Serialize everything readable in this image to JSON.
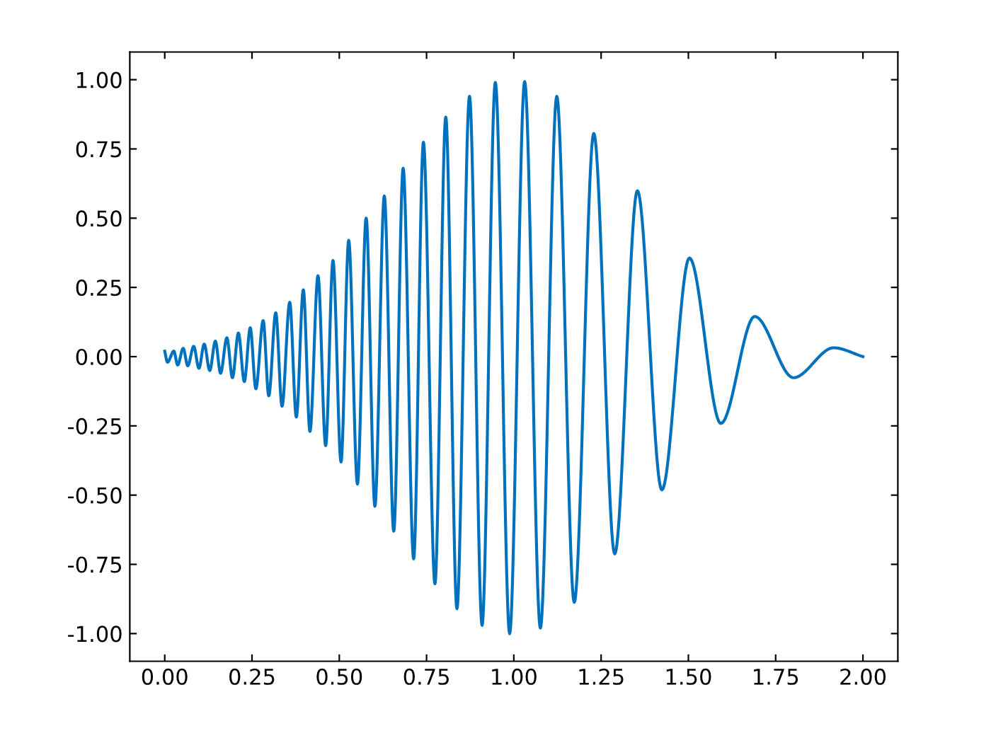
{
  "chart_data": {
    "type": "line",
    "series": [
      {
        "color": "#0072bd",
        "x": [
          0.0,
          0.008,
          0.026,
          0.037,
          0.053,
          0.066,
          0.083,
          0.098,
          0.113,
          0.129,
          0.145,
          0.16,
          0.178,
          0.194,
          0.211,
          0.228,
          0.245,
          0.261,
          0.282,
          0.298,
          0.318,
          0.336,
          0.358,
          0.377,
          0.397,
          0.416,
          0.439,
          0.461,
          0.482,
          0.505,
          0.527,
          0.552,
          0.577,
          0.602,
          0.629,
          0.656,
          0.683,
          0.713,
          0.741,
          0.774,
          0.805,
          0.837,
          0.873,
          0.909,
          0.947,
          0.988,
          1.031,
          1.076,
          1.123,
          1.173,
          1.229,
          1.289,
          1.354,
          1.424,
          1.503,
          1.593,
          1.69,
          1.801,
          1.916,
          2.0
        ],
        "values": [
          0.02,
          -0.02,
          0.02,
          -0.03,
          0.03,
          -0.033,
          0.037,
          -0.042,
          0.045,
          -0.05,
          0.056,
          -0.06,
          0.068,
          -0.076,
          0.085,
          -0.09,
          0.104,
          -0.116,
          0.13,
          -0.141,
          0.158,
          -0.179,
          0.196,
          -0.218,
          0.241,
          -0.27,
          0.292,
          -0.321,
          0.347,
          -0.38,
          0.42,
          -0.46,
          0.5,
          -0.54,
          0.58,
          -0.63,
          0.68,
          -0.73,
          0.774,
          -0.82,
          0.865,
          -0.91,
          0.94,
          -0.97,
          0.99,
          -1.0,
          0.993,
          -0.98,
          0.94,
          -0.887,
          0.806,
          -0.712,
          0.599,
          -0.481,
          0.356,
          -0.241,
          0.145,
          -0.076,
          0.032,
          0.0
        ]
      }
    ],
    "xlim": [
      -0.1,
      2.1
    ],
    "ylim": [
      -1.1,
      1.1
    ],
    "xticks": [
      {
        "value": 0,
        "label": "0.00"
      },
      {
        "value": 0.25,
        "label": "0.25"
      },
      {
        "value": 0.5,
        "label": "0.50"
      },
      {
        "value": 0.75,
        "label": "0.75"
      },
      {
        "value": 1,
        "label": "1.00"
      },
      {
        "value": 1.25,
        "label": "1.25"
      },
      {
        "value": 1.5,
        "label": "1.50"
      },
      {
        "value": 1.75,
        "label": "1.75"
      },
      {
        "value": 2,
        "label": "2.00"
      }
    ],
    "yticks": [
      {
        "value": -1,
        "label": "-1.00"
      },
      {
        "value": -0.75,
        "label": "-0.75"
      },
      {
        "value": -0.5,
        "label": "-0.50"
      },
      {
        "value": -0.25,
        "label": "-0.25"
      },
      {
        "value": 0,
        "label": "0.00"
      },
      {
        "value": 0.25,
        "label": "0.25"
      },
      {
        "value": 0.5,
        "label": "0.50"
      },
      {
        "value": 0.75,
        "label": "0.75"
      },
      {
        "value": 1,
        "label": "1.00"
      }
    ],
    "grid": false,
    "marker": "none",
    "line_style": "solid"
  }
}
